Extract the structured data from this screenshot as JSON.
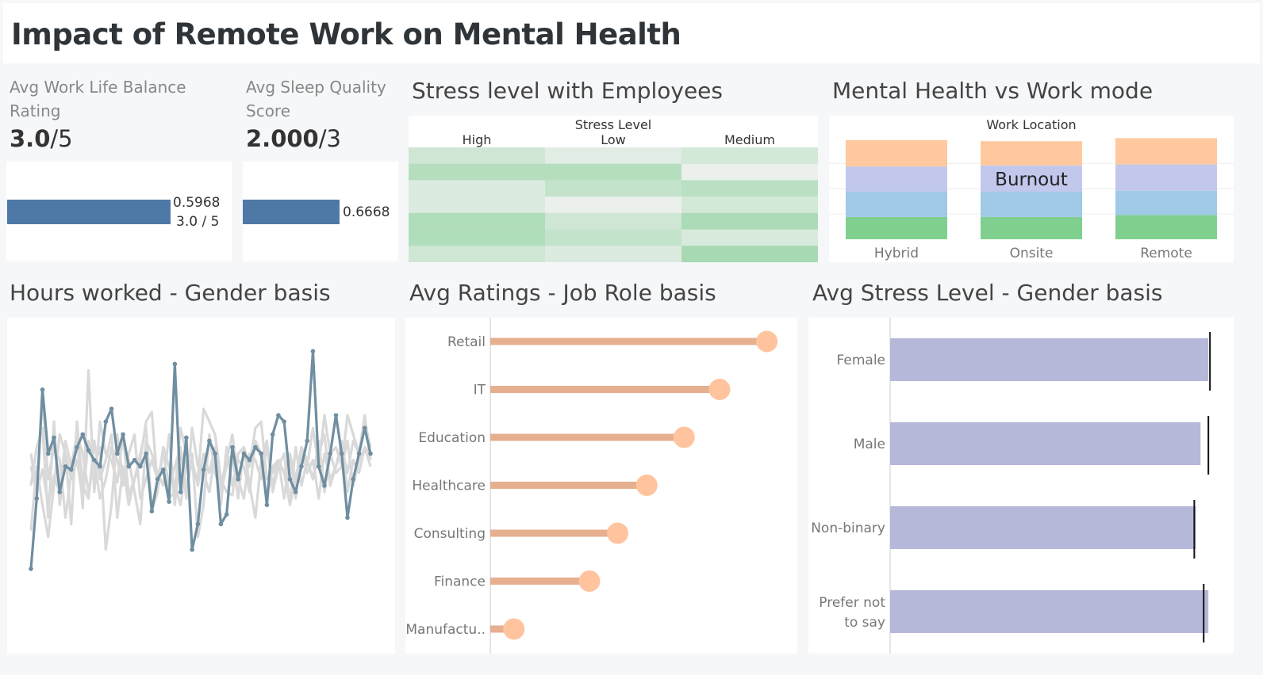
{
  "title": "Impact of Remote Work on Mental Health",
  "kpi1": {
    "label_line1": "Avg Work Life Balance",
    "label_line2": "Rating",
    "value_main": "3.0",
    "value_suffix": "/5",
    "bar_label_1": "0.5968",
    "bar_label_2": "3.0 / 5",
    "bar_color": "#4e79a7",
    "bar_fraction": 0.5968
  },
  "kpi2": {
    "label_line1": "Avg Sleep Quality",
    "label_line2": "Score",
    "value_main": "2.000",
    "value_suffix": "/3",
    "bar_label_1": "0.6668",
    "bar_color": "#4e79a7",
    "bar_fraction": 0.6668
  },
  "heatmap": {
    "title": "Stress level with Employees",
    "header_title_line1": "Stress Level",
    "columns": [
      "High",
      "Low",
      "Medium"
    ]
  },
  "workmode": {
    "title": "Mental Health vs Work mode",
    "header_title": "Work Location",
    "tooltip_label": "Burnout"
  },
  "hours": {
    "title": "Hours worked - Gender basis"
  },
  "ratings": {
    "title": "Avg Ratings - Job Role basis"
  },
  "stress_gender": {
    "title": "Avg Stress Level - Gender basis"
  },
  "chart_data": [
    {
      "type": "heatmap",
      "x_title": "Stress Level",
      "columns": [
        "High",
        "Low",
        "Medium"
      ],
      "rows": 7,
      "intensity": [
        [
          0.35,
          0.15,
          0.3
        ],
        [
          0.6,
          0.6,
          0.05
        ],
        [
          0.2,
          0.45,
          0.55
        ],
        [
          0.2,
          0.05,
          0.3
        ],
        [
          0.65,
          0.35,
          0.7
        ],
        [
          0.65,
          0.45,
          0.25
        ],
        [
          0.35,
          0.2,
          0.75
        ]
      ],
      "color": "#8fd19e"
    },
    {
      "type": "bar",
      "x_title": "Work Location",
      "categories": [
        "Hybrid",
        "Onsite",
        "Remote"
      ],
      "stacked": true,
      "series": [
        {
          "name": "",
          "color": "#7fd08e",
          "values": [
            0.22,
            0.22,
            0.24
          ]
        },
        {
          "name": "",
          "color": "#9fc9e6",
          "values": [
            0.25,
            0.25,
            0.24
          ]
        },
        {
          "name": "Burnout",
          "color": "#c2c7ec",
          "values": [
            0.25,
            0.26,
            0.26
          ]
        },
        {
          "name": "",
          "color": "#ffc89e",
          "values": [
            0.26,
            0.24,
            0.26
          ]
        }
      ],
      "ylim": [
        0,
        1.05
      ]
    },
    {
      "type": "line",
      "x_count": 60,
      "grid": false,
      "series": [
        {
          "name": "",
          "color": "#6f8ea1",
          "values": [
            24,
            46,
            80,
            60,
            65,
            48,
            56,
            55,
            62,
            66,
            61,
            58,
            56,
            70,
            74,
            60,
            66,
            56,
            58,
            56,
            60,
            42,
            52,
            55,
            45,
            88,
            48,
            65,
            30,
            38,
            55,
            64,
            60,
            38,
            41,
            62,
            52,
            60,
            58,
            62,
            60,
            44,
            66,
            72,
            70,
            52,
            48,
            56,
            64,
            92,
            56,
            50,
            60,
            72,
            60,
            40,
            52,
            60,
            68,
            60
          ]
        },
        {
          "name": "",
          "color": "#d9d9d9",
          "values": [
            60,
            48,
            55,
            44,
            53,
            48,
            64,
            56,
            66,
            43,
            86,
            48,
            70,
            60,
            58,
            51,
            66,
            47,
            52,
            58,
            70,
            73,
            50,
            62,
            46,
            48,
            68,
            60,
            56,
            52,
            74,
            70,
            66,
            52,
            48,
            47,
            60,
            62,
            56,
            68,
            70,
            52,
            54,
            58,
            46,
            60,
            52,
            60,
            56,
            68,
            56,
            72,
            60,
            62,
            56,
            72,
            66,
            60,
            70,
            62
          ]
        },
        {
          "name": "",
          "color": "#d9d9d9",
          "values": [
            50,
            62,
            68,
            40,
            70,
            44,
            60,
            52,
            58,
            46,
            64,
            56,
            62,
            30,
            44,
            66,
            52,
            58,
            48,
            38,
            64,
            60,
            54,
            50,
            66,
            44,
            62,
            46,
            68,
            56,
            54,
            48,
            60,
            44,
            62,
            50,
            58,
            56,
            48,
            64,
            60,
            46,
            56,
            58,
            54,
            44,
            62,
            50,
            58,
            52,
            64,
            48,
            60,
            54,
            56,
            64,
            50,
            58,
            62,
            60
          ]
        },
        {
          "name": "",
          "color": "#d9d9d9",
          "values": [
            56,
            48,
            78,
            52,
            62,
            58,
            40,
            54,
            66,
            60,
            48,
            58,
            46,
            52,
            62,
            58,
            50,
            60,
            66,
            46,
            52,
            58,
            52,
            60,
            50,
            56,
            62,
            48,
            58,
            50,
            60,
            54,
            62,
            50,
            58,
            66,
            52,
            46,
            60,
            58,
            52,
            62,
            50,
            58,
            54,
            60,
            46,
            62,
            58,
            52,
            60,
            66,
            50,
            56,
            62,
            54,
            64,
            60,
            72,
            58
          ]
        },
        {
          "name": "",
          "color": "#d9d9d9",
          "values": [
            36,
            56,
            44,
            34,
            50,
            66,
            60,
            38,
            70,
            50,
            46,
            64,
            52,
            58,
            66,
            40,
            56,
            44,
            52,
            60,
            68,
            42,
            48,
            62,
            56,
            50,
            44,
            58,
            60,
            34,
            44,
            66,
            54,
            48,
            56,
            60,
            46,
            62,
            50,
            40,
            58,
            64,
            48,
            56,
            60,
            44,
            52,
            62,
            54,
            58,
            46,
            60,
            52,
            56,
            64,
            48,
            58,
            54,
            62,
            56
          ]
        }
      ],
      "ylim": [
        0,
        100
      ]
    },
    {
      "type": "scatter",
      "subtype": "lollipop",
      "categories": [
        "Retail",
        "IT",
        "Education",
        "Healthcare",
        "Consulting",
        "Finance",
        "Manufactu.."
      ],
      "values": [
        3.04,
        2.52,
        2.13,
        1.72,
        1.4,
        1.09,
        0.26
      ],
      "xlim": [
        0,
        3.2
      ],
      "color": "#ffc49e",
      "line_color": "#e5af90"
    },
    {
      "type": "bar",
      "orientation": "horizontal",
      "categories": [
        "Female",
        "Male",
        "Non-binary",
        "Prefer not to say"
      ],
      "values": [
        2.03,
        1.98,
        1.95,
        2.03
      ],
      "reference": [
        2.04,
        2.03,
        1.94,
        2.0
      ],
      "xlim": [
        0,
        2.1
      ],
      "color": "#b5b8d9"
    }
  ]
}
